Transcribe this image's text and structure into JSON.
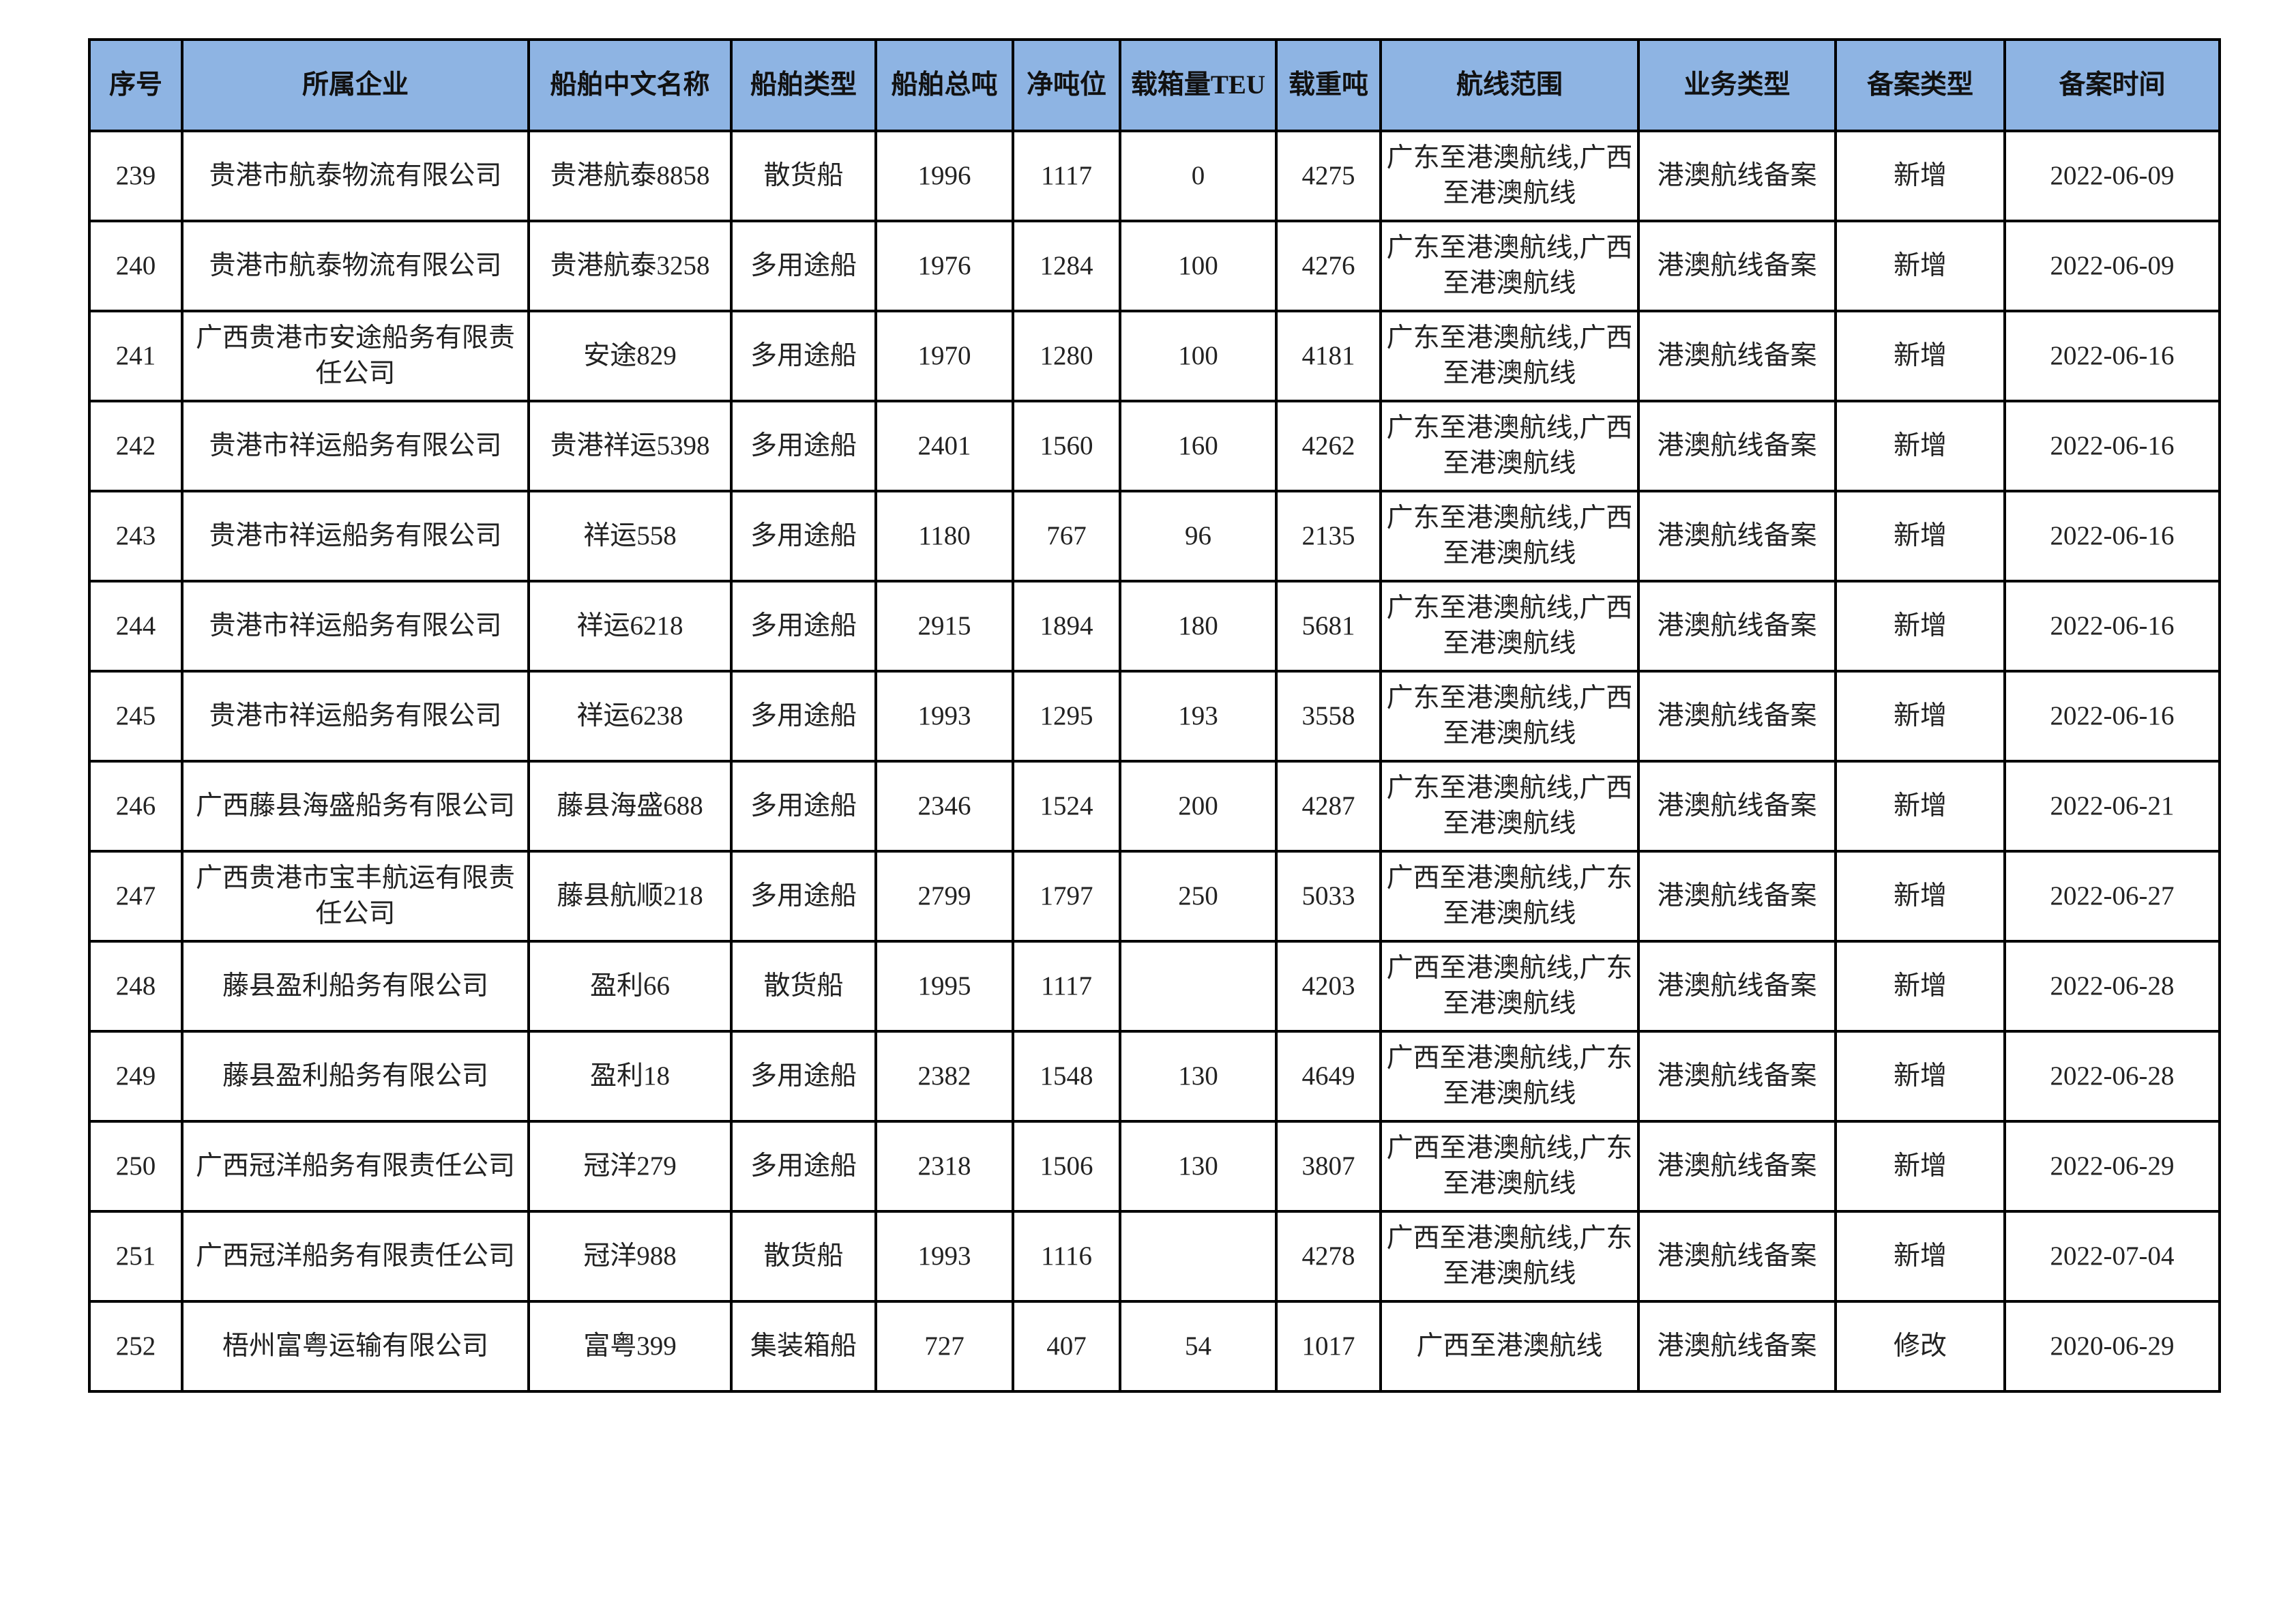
{
  "header_color": "#8eb4e3",
  "columns": [
    "序号",
    "所属企业",
    "船舶中文名称",
    "船舶类型",
    "船舶总吨",
    "净吨位",
    "载箱量TEU",
    "载重吨",
    "航线范围",
    "业务类型",
    "备案类型",
    "备案时间"
  ],
  "rows": [
    [
      "239",
      "贵港市航泰物流有限公司",
      "贵港航泰8858",
      "散货船",
      "1996",
      "1117",
      "0",
      "4275",
      "广东至港澳航线,广西至港澳航线",
      "港澳航线备案",
      "新增",
      "2022-06-09"
    ],
    [
      "240",
      "贵港市航泰物流有限公司",
      "贵港航泰3258",
      "多用途船",
      "1976",
      "1284",
      "100",
      "4276",
      "广东至港澳航线,广西至港澳航线",
      "港澳航线备案",
      "新增",
      "2022-06-09"
    ],
    [
      "241",
      "广西贵港市安途船务有限责任公司",
      "安途829",
      "多用途船",
      "1970",
      "1280",
      "100",
      "4181",
      "广东至港澳航线,广西至港澳航线",
      "港澳航线备案",
      "新增",
      "2022-06-16"
    ],
    [
      "242",
      "贵港市祥运船务有限公司",
      "贵港祥运5398",
      "多用途船",
      "2401",
      "1560",
      "160",
      "4262",
      "广东至港澳航线,广西至港澳航线",
      "港澳航线备案",
      "新增",
      "2022-06-16"
    ],
    [
      "243",
      "贵港市祥运船务有限公司",
      "祥运558",
      "多用途船",
      "1180",
      "767",
      "96",
      "2135",
      "广东至港澳航线,广西至港澳航线",
      "港澳航线备案",
      "新增",
      "2022-06-16"
    ],
    [
      "244",
      "贵港市祥运船务有限公司",
      "祥运6218",
      "多用途船",
      "2915",
      "1894",
      "180",
      "5681",
      "广东至港澳航线,广西至港澳航线",
      "港澳航线备案",
      "新增",
      "2022-06-16"
    ],
    [
      "245",
      "贵港市祥运船务有限公司",
      "祥运6238",
      "多用途船",
      "1993",
      "1295",
      "193",
      "3558",
      "广东至港澳航线,广西至港澳航线",
      "港澳航线备案",
      "新增",
      "2022-06-16"
    ],
    [
      "246",
      "广西藤县海盛船务有限公司",
      "藤县海盛688",
      "多用途船",
      "2346",
      "1524",
      "200",
      "4287",
      "广东至港澳航线,广西至港澳航线",
      "港澳航线备案",
      "新增",
      "2022-06-21"
    ],
    [
      "247",
      "广西贵港市宝丰航运有限责任公司",
      "藤县航顺218",
      "多用途船",
      "2799",
      "1797",
      "250",
      "5033",
      "广西至港澳航线,广东至港澳航线",
      "港澳航线备案",
      "新增",
      "2022-06-27"
    ],
    [
      "248",
      "藤县盈利船务有限公司",
      "盈利66",
      "散货船",
      "1995",
      "1117",
      "",
      "4203",
      "广西至港澳航线,广东至港澳航线",
      "港澳航线备案",
      "新增",
      "2022-06-28"
    ],
    [
      "249",
      "藤县盈利船务有限公司",
      "盈利18",
      "多用途船",
      "2382",
      "1548",
      "130",
      "4649",
      "广西至港澳航线,广东至港澳航线",
      "港澳航线备案",
      "新增",
      "2022-06-28"
    ],
    [
      "250",
      "广西冠洋船务有限责任公司",
      "冠洋279",
      "多用途船",
      "2318",
      "1506",
      "130",
      "3807",
      "广西至港澳航线,广东至港澳航线",
      "港澳航线备案",
      "新增",
      "2022-06-29"
    ],
    [
      "251",
      "广西冠洋船务有限责任公司",
      "冠洋988",
      "散货船",
      "1993",
      "1116",
      "",
      "4278",
      "广西至港澳航线,广东至港澳航线",
      "港澳航线备案",
      "新增",
      "2022-07-04"
    ],
    [
      "252",
      "梧州富粤运输有限公司",
      "富粤399",
      "集装箱船",
      "727",
      "407",
      "54",
      "1017",
      "广西至港澳航线",
      "港澳航线备案",
      "修改",
      "2020-06-29"
    ]
  ]
}
